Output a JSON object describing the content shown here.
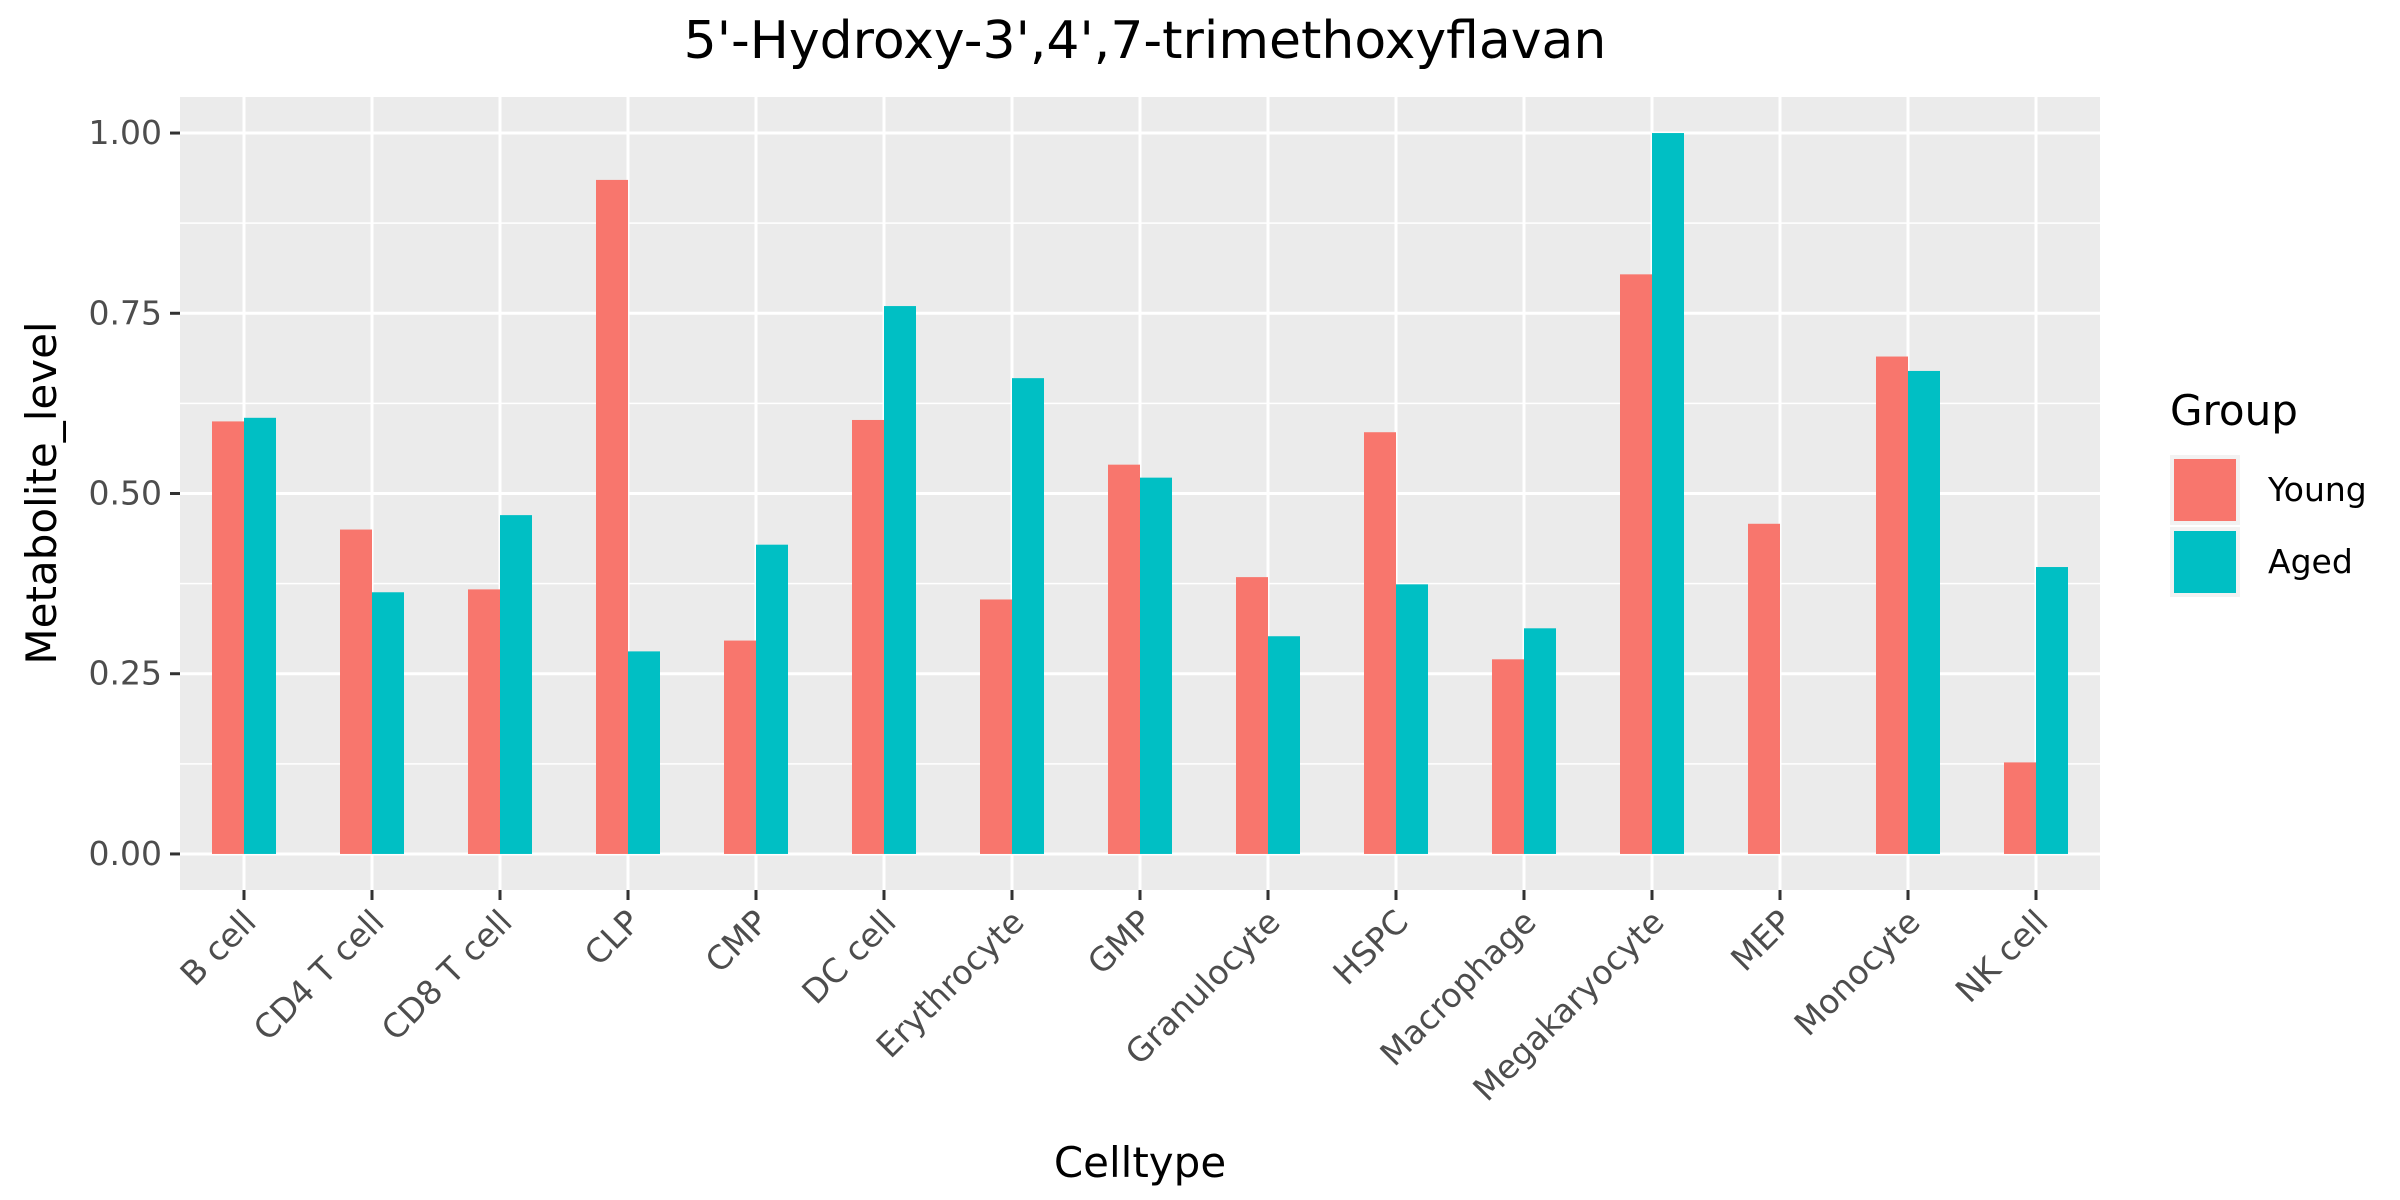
{
  "chart_data": {
    "type": "bar",
    "title": "5'-Hydroxy-3',4',7-trimethoxyflavan",
    "xlabel": "Celltype",
    "ylabel": "Metabolite_level",
    "ylim": [
      -0.05,
      1.05
    ],
    "yticks": [
      0.0,
      0.25,
      0.5,
      0.75,
      1.0
    ],
    "ytick_labels": [
      "0.00",
      "0.25",
      "0.50",
      "0.75",
      "1.00"
    ],
    "grid": true,
    "legend": {
      "title": "Group",
      "position": "right"
    },
    "categories": [
      "B cell",
      "CD4 T cell",
      "CD8 T cell",
      "CLP",
      "CMP",
      "DC cell",
      "Erythrocyte",
      "GMP",
      "Granulocyte",
      "HSPC",
      "Macrophage",
      "Megakaryocyte",
      "MEP",
      "Monocyte",
      "NK cell"
    ],
    "series": [
      {
        "name": "Young",
        "color": "#F8766D",
        "values": [
          0.6,
          0.45,
          0.367,
          0.935,
          0.296,
          0.602,
          0.353,
          0.54,
          0.384,
          0.585,
          0.27,
          0.804,
          0.458,
          0.69,
          0.127
        ]
      },
      {
        "name": "Aged",
        "color": "#00BFC4",
        "values": [
          0.605,
          0.363,
          0.47,
          0.281,
          0.429,
          0.76,
          0.66,
          0.522,
          0.302,
          0.374,
          0.313,
          1.0,
          null,
          0.67,
          0.398
        ]
      }
    ]
  }
}
